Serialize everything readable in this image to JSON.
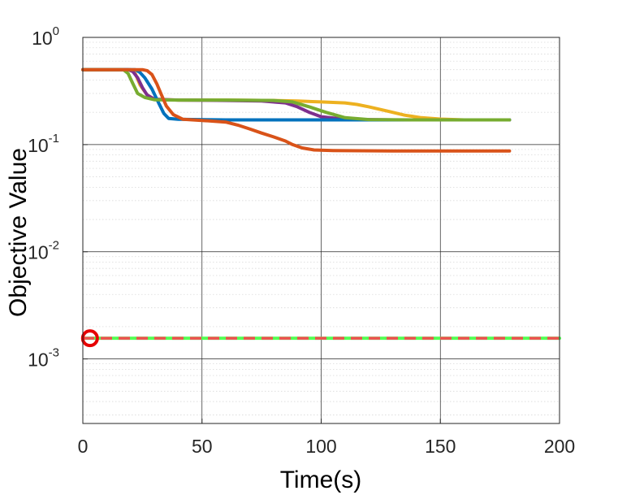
{
  "chart_data": {
    "type": "line",
    "title": "",
    "xlabel": "Time(s)",
    "ylabel": "Objective Value",
    "xlim": [
      0,
      200
    ],
    "ylim": [
      0.00025,
      1
    ],
    "yscale": "log",
    "grid": true,
    "minor_grid": true,
    "legend": "none",
    "x_ticks": [
      {
        "value": 0,
        "label": "0"
      },
      {
        "value": 50,
        "label": "50"
      },
      {
        "value": 100,
        "label": "100"
      },
      {
        "value": 150,
        "label": "150"
      },
      {
        "value": 200,
        "label": "200"
      }
    ],
    "y_ticks": [
      {
        "value": 1,
        "base": "10",
        "exp": "0"
      },
      {
        "value": 0.1,
        "base": "10",
        "exp": "-1"
      },
      {
        "value": 0.01,
        "base": "10",
        "exp": "-2"
      },
      {
        "value": 0.001,
        "base": "10",
        "exp": "-3"
      }
    ],
    "series": [
      {
        "color": "#EDB120",
        "points": [
          [
            0,
            0.5
          ],
          [
            20,
            0.5
          ],
          [
            22,
            0.46
          ],
          [
            24,
            0.36
          ],
          [
            27,
            0.29
          ],
          [
            30,
            0.265
          ],
          [
            40,
            0.26
          ],
          [
            60,
            0.26
          ],
          [
            80,
            0.258
          ],
          [
            90,
            0.255
          ],
          [
            100,
            0.25
          ],
          [
            110,
            0.245
          ],
          [
            115,
            0.237
          ],
          [
            120,
            0.225
          ],
          [
            128,
            0.205
          ],
          [
            135,
            0.188
          ],
          [
            142,
            0.178
          ],
          [
            150,
            0.173
          ],
          [
            160,
            0.17
          ],
          [
            179,
            0.17
          ]
        ]
      },
      {
        "color": "#7E2F8E",
        "points": [
          [
            0,
            0.5
          ],
          [
            19,
            0.5
          ],
          [
            21,
            0.48
          ],
          [
            23,
            0.42
          ],
          [
            25,
            0.34
          ],
          [
            27,
            0.29
          ],
          [
            30,
            0.265
          ],
          [
            40,
            0.26
          ],
          [
            60,
            0.258
          ],
          [
            75,
            0.255
          ],
          [
            85,
            0.245
          ],
          [
            90,
            0.225
          ],
          [
            95,
            0.2
          ],
          [
            100,
            0.182
          ],
          [
            110,
            0.172
          ],
          [
            130,
            0.17
          ],
          [
            179,
            0.17
          ]
        ]
      },
      {
        "color": "#0072BD",
        "points": [
          [
            0,
            0.5
          ],
          [
            22,
            0.5
          ],
          [
            24,
            0.47
          ],
          [
            26,
            0.42
          ],
          [
            29,
            0.33
          ],
          [
            32,
            0.24
          ],
          [
            34,
            0.195
          ],
          [
            36,
            0.175
          ],
          [
            40,
            0.172
          ],
          [
            60,
            0.17
          ],
          [
            100,
            0.17
          ],
          [
            140,
            0.17
          ],
          [
            179,
            0.17
          ]
        ]
      },
      {
        "color": "#77AC30",
        "points": [
          [
            0,
            0.5
          ],
          [
            17,
            0.5
          ],
          [
            19,
            0.46
          ],
          [
            21,
            0.37
          ],
          [
            23,
            0.3
          ],
          [
            26,
            0.275
          ],
          [
            30,
            0.262
          ],
          [
            40,
            0.26
          ],
          [
            60,
            0.26
          ],
          [
            80,
            0.258
          ],
          [
            88,
            0.25
          ],
          [
            95,
            0.225
          ],
          [
            102,
            0.2
          ],
          [
            110,
            0.178
          ],
          [
            120,
            0.171
          ],
          [
            140,
            0.17
          ],
          [
            179,
            0.17
          ]
        ]
      },
      {
        "color": "#D95319",
        "points": [
          [
            0,
            0.5
          ],
          [
            25,
            0.5
          ],
          [
            27,
            0.49
          ],
          [
            29,
            0.45
          ],
          [
            31,
            0.37
          ],
          [
            33,
            0.29
          ],
          [
            35,
            0.23
          ],
          [
            38,
            0.19
          ],
          [
            42,
            0.172
          ],
          [
            50,
            0.168
          ],
          [
            60,
            0.162
          ],
          [
            65,
            0.152
          ],
          [
            70,
            0.14
          ],
          [
            75,
            0.128
          ],
          [
            80,
            0.118
          ],
          [
            85,
            0.108
          ],
          [
            88,
            0.1
          ],
          [
            92,
            0.093
          ],
          [
            97,
            0.089
          ],
          [
            105,
            0.088
          ],
          [
            130,
            0.087
          ],
          [
            179,
            0.087
          ]
        ]
      },
      {
        "color": "#55FF55",
        "points": [
          [
            0,
            0.00156
          ],
          [
            200,
            0.00156
          ]
        ]
      },
      {
        "color": "#F05050",
        "dashed": true,
        "points": [
          [
            0,
            0.00156
          ],
          [
            200,
            0.00156
          ]
        ]
      }
    ],
    "markers": [
      {
        "x": 3,
        "y": 0.00156,
        "shape": "circle",
        "color": "#E60000"
      }
    ]
  }
}
